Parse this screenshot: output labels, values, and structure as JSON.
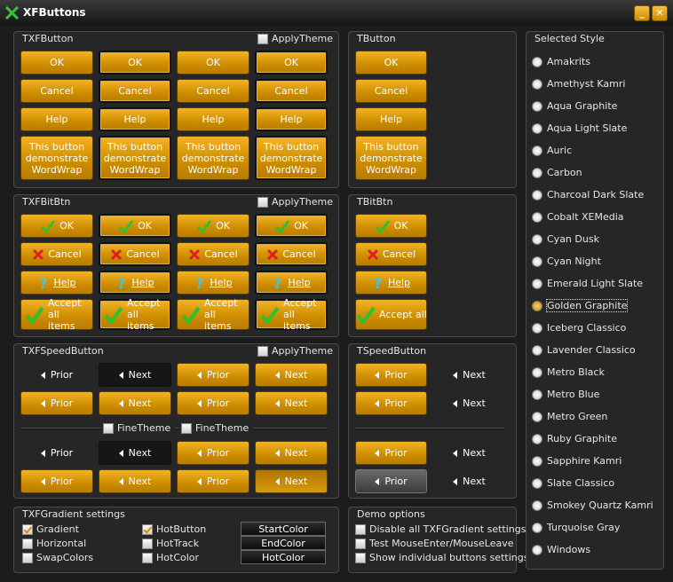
{
  "window": {
    "title": "XFButtons"
  },
  "txf_button": {
    "title": "TXFButton",
    "apply_theme": "ApplyTheme",
    "rows": [
      [
        "OK",
        "OK",
        "OK",
        "OK"
      ],
      [
        "Cancel",
        "Cancel",
        "Cancel",
        "Cancel"
      ],
      [
        "Help",
        "Help",
        "Help",
        "Help"
      ],
      [
        "This button demonstrate WordWrap",
        "This button demonstrate WordWrap",
        "This button demonstrate WordWrap",
        "This button demonstrate WordWrap"
      ]
    ]
  },
  "t_button": {
    "title": "TButton",
    "rows": [
      "OK",
      "Cancel",
      "Help",
      "This button demonstrate WordWrap"
    ]
  },
  "txf_bitbtn": {
    "title": "TXFBitBtn",
    "apply_theme": "ApplyTheme",
    "rows": [
      [
        "OK",
        "OK",
        "OK",
        "OK"
      ],
      [
        "Cancel",
        "Cancel",
        "Cancel",
        "Cancel"
      ],
      [
        "Help",
        "Help",
        "Help",
        "Help"
      ],
      [
        "Accept all items",
        "Accept all items",
        "Accept all items",
        "Accept all items"
      ]
    ]
  },
  "t_bitbtn": {
    "title": "TBitBtn",
    "rows": [
      "OK",
      "Cancel",
      "Help",
      "Accept all items"
    ]
  },
  "txf_speedbutton": {
    "title": "TXFSpeedButton",
    "apply_theme": "ApplyTheme",
    "fine_theme": [
      "FineTheme",
      "FineTheme"
    ],
    "rows": [
      [
        "Prior",
        "Next",
        "Prior",
        "Next"
      ],
      [
        "Prior",
        "Next",
        "Prior",
        "Next"
      ],
      [
        "Prior",
        "Next",
        "Prior",
        "Next"
      ],
      [
        "Prior",
        "Next",
        "Prior",
        "Next"
      ]
    ]
  },
  "t_speedbutton": {
    "title": "TSpeedButton",
    "rows": [
      [
        "Prior",
        "Next"
      ],
      [
        "Prior",
        "Next"
      ],
      [
        "Prior",
        "Next"
      ],
      [
        "Prior",
        "Next"
      ]
    ]
  },
  "gradient_settings": {
    "title": "TXFGradient settings",
    "checkboxes": [
      [
        {
          "label": "Gradient",
          "checked": true
        },
        {
          "label": "Horizontal",
          "checked": false
        },
        {
          "label": "SwapColors",
          "checked": false
        }
      ],
      [
        {
          "label": "HotButton",
          "checked": true
        },
        {
          "label": "HotTrack",
          "checked": false
        },
        {
          "label": "HotColor",
          "checked": false
        }
      ]
    ],
    "buttons": [
      "StartColor",
      "EndColor",
      "HotColor"
    ]
  },
  "demo_options": {
    "title": "Demo options",
    "checkboxes": [
      {
        "label": "Disable all TXFGradient settings",
        "checked": false
      },
      {
        "label": "Test MouseEnter/MouseLeave",
        "checked": false
      },
      {
        "label": "Show individual buttons settings",
        "checked": false
      }
    ]
  },
  "selected_style": {
    "title": "Selected Style",
    "selected": 11,
    "options": [
      "Amakrits",
      "Amethyst Kamri",
      "Aqua Graphite",
      "Aqua Light Slate",
      "Auric",
      "Carbon",
      "Charcoal Dark Slate",
      "Cobalt XEMedia",
      "Cyan Dusk",
      "Cyan Night",
      "Emerald Light Slate",
      "Golden Graphite",
      "Iceberg Classico",
      "Lavender Classico",
      "Metro Black",
      "Metro Blue",
      "Metro Green",
      "Ruby Graphite",
      "Sapphire Kamri",
      "Slate Classico",
      "Smokey Quartz Kamri",
      "Turquoise Gray",
      "Windows"
    ]
  }
}
